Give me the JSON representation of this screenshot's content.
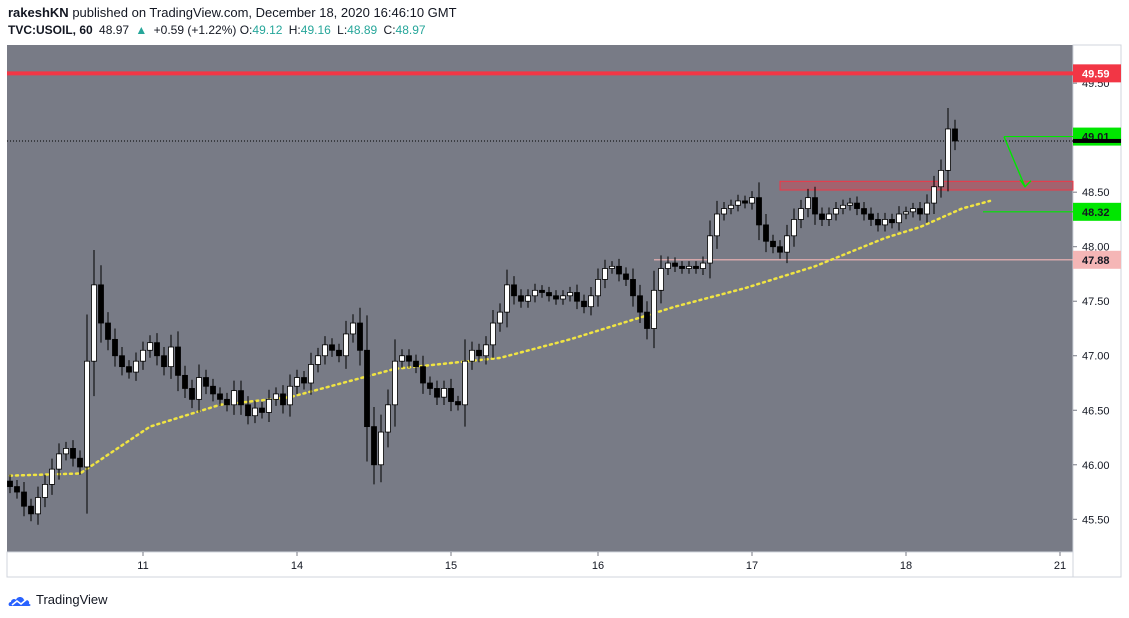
{
  "header": {
    "author": "rakeshKN",
    "published_text": "published on TradingView.com, December 18, 2020 16:46:10 GMT",
    "symbol": "TVC:USOIL, 60",
    "last": "48.97",
    "change_arrow": "▲",
    "change": "+0.59 (+1.22%)",
    "o_label": "O:",
    "o_value": "49.12",
    "h_label": "H:",
    "h_value": "49.16",
    "l_label": "L:",
    "l_value": "48.89",
    "c_label": "C:",
    "c_value": "48.97"
  },
  "footer": {
    "brand": "TradingView",
    "logo_icon": "tradingview-cloud-logo"
  },
  "chart_data": {
    "type": "candlestick",
    "ylim": [
      45.2,
      49.85
    ],
    "y_ticks": [
      "45.50",
      "46.00",
      "46.50",
      "47.00",
      "47.50",
      "48.00",
      "48.50",
      "49.00",
      "49.50"
    ],
    "x_ticks": [
      {
        "label": "11",
        "idx": 19
      },
      {
        "label": "14",
        "idx": 41
      },
      {
        "label": "15",
        "idx": 63
      },
      {
        "label": "16",
        "idx": 84
      },
      {
        "label": "17",
        "idx": 106
      },
      {
        "label": "18",
        "idx": 128
      },
      {
        "label": "21",
        "idx": 150
      }
    ],
    "closes": [
      45.8,
      45.75,
      45.62,
      45.55,
      45.7,
      45.82,
      45.96,
      46.1,
      46.15,
      46.06,
      45.98,
      46.95,
      47.65,
      47.3,
      47.15,
      47.0,
      46.9,
      46.85,
      46.95,
      47.05,
      47.12,
      47.0,
      46.9,
      47.08,
      46.82,
      46.7,
      46.6,
      46.8,
      46.72,
      46.65,
      46.6,
      46.55,
      46.68,
      46.55,
      46.45,
      46.52,
      46.48,
      46.6,
      46.65,
      46.55,
      46.72,
      46.8,
      46.75,
      46.92,
      47.0,
      47.1,
      47.05,
      47.0,
      47.2,
      47.3,
      47.05,
      46.35,
      46.0,
      46.3,
      46.55,
      46.95,
      47.0,
      46.95,
      46.9,
      46.75,
      46.7,
      46.62,
      46.7,
      46.58,
      46.55,
      46.95,
      47.05,
      47.0,
      47.1,
      47.3,
      47.4,
      47.65,
      47.55,
      47.5,
      47.55,
      47.6,
      47.58,
      47.55,
      47.52,
      47.55,
      47.58,
      47.5,
      47.45,
      47.55,
      47.7,
      47.8,
      47.82,
      47.75,
      47.7,
      47.55,
      47.4,
      47.25,
      47.6,
      47.8,
      47.85,
      47.82,
      47.8,
      47.82,
      47.8,
      47.85,
      48.1,
      48.3,
      48.35,
      48.38,
      48.42,
      48.4,
      48.45,
      48.2,
      48.05,
      48.0,
      47.95,
      48.1,
      48.25,
      48.35,
      48.45,
      48.3,
      48.25,
      48.3,
      48.35,
      48.38,
      48.4,
      48.35,
      48.3,
      48.25,
      48.2,
      48.25,
      48.22,
      48.3,
      48.32,
      48.35,
      48.3,
      48.4,
      48.55,
      48.7,
      49.08,
      48.97
    ],
    "ma_points": [
      [
        0,
        45.9
      ],
      [
        10,
        45.92
      ],
      [
        20,
        46.35
      ],
      [
        30,
        46.55
      ],
      [
        40,
        46.62
      ],
      [
        55,
        46.88
      ],
      [
        70,
        46.98
      ],
      [
        80,
        47.15
      ],
      [
        95,
        47.45
      ],
      [
        105,
        47.62
      ],
      [
        115,
        47.82
      ],
      [
        125,
        48.08
      ],
      [
        130,
        48.18
      ],
      [
        136,
        48.35
      ],
      [
        140,
        48.42
      ]
    ],
    "lines": [
      {
        "name": "resistance-49.59",
        "price": 49.59,
        "label": "49.59",
        "color": "#f23645",
        "text_color": "#ffffff"
      },
      {
        "name": "support-47.88",
        "price": 47.88,
        "label": "47.88",
        "color": "#f5b6b6",
        "text_color": "#131722"
      },
      {
        "name": "level-48.32",
        "price": 48.32,
        "label": "48.32",
        "color": "#00e600",
        "text_color": "#131722"
      },
      {
        "name": "level-49.01",
        "price": 49.01,
        "label": "49.01",
        "color": "#00e600",
        "text_color": "#131722"
      }
    ],
    "zone": {
      "top": 48.6,
      "bottom": 48.52,
      "from_idx": 110,
      "color": "#f23645"
    },
    "last_price": 48.97,
    "colors": {
      "bg": "#787b86",
      "up": "#ffffff",
      "down": "#000000",
      "ma": "#f0e442",
      "wick": "#000000"
    }
  }
}
